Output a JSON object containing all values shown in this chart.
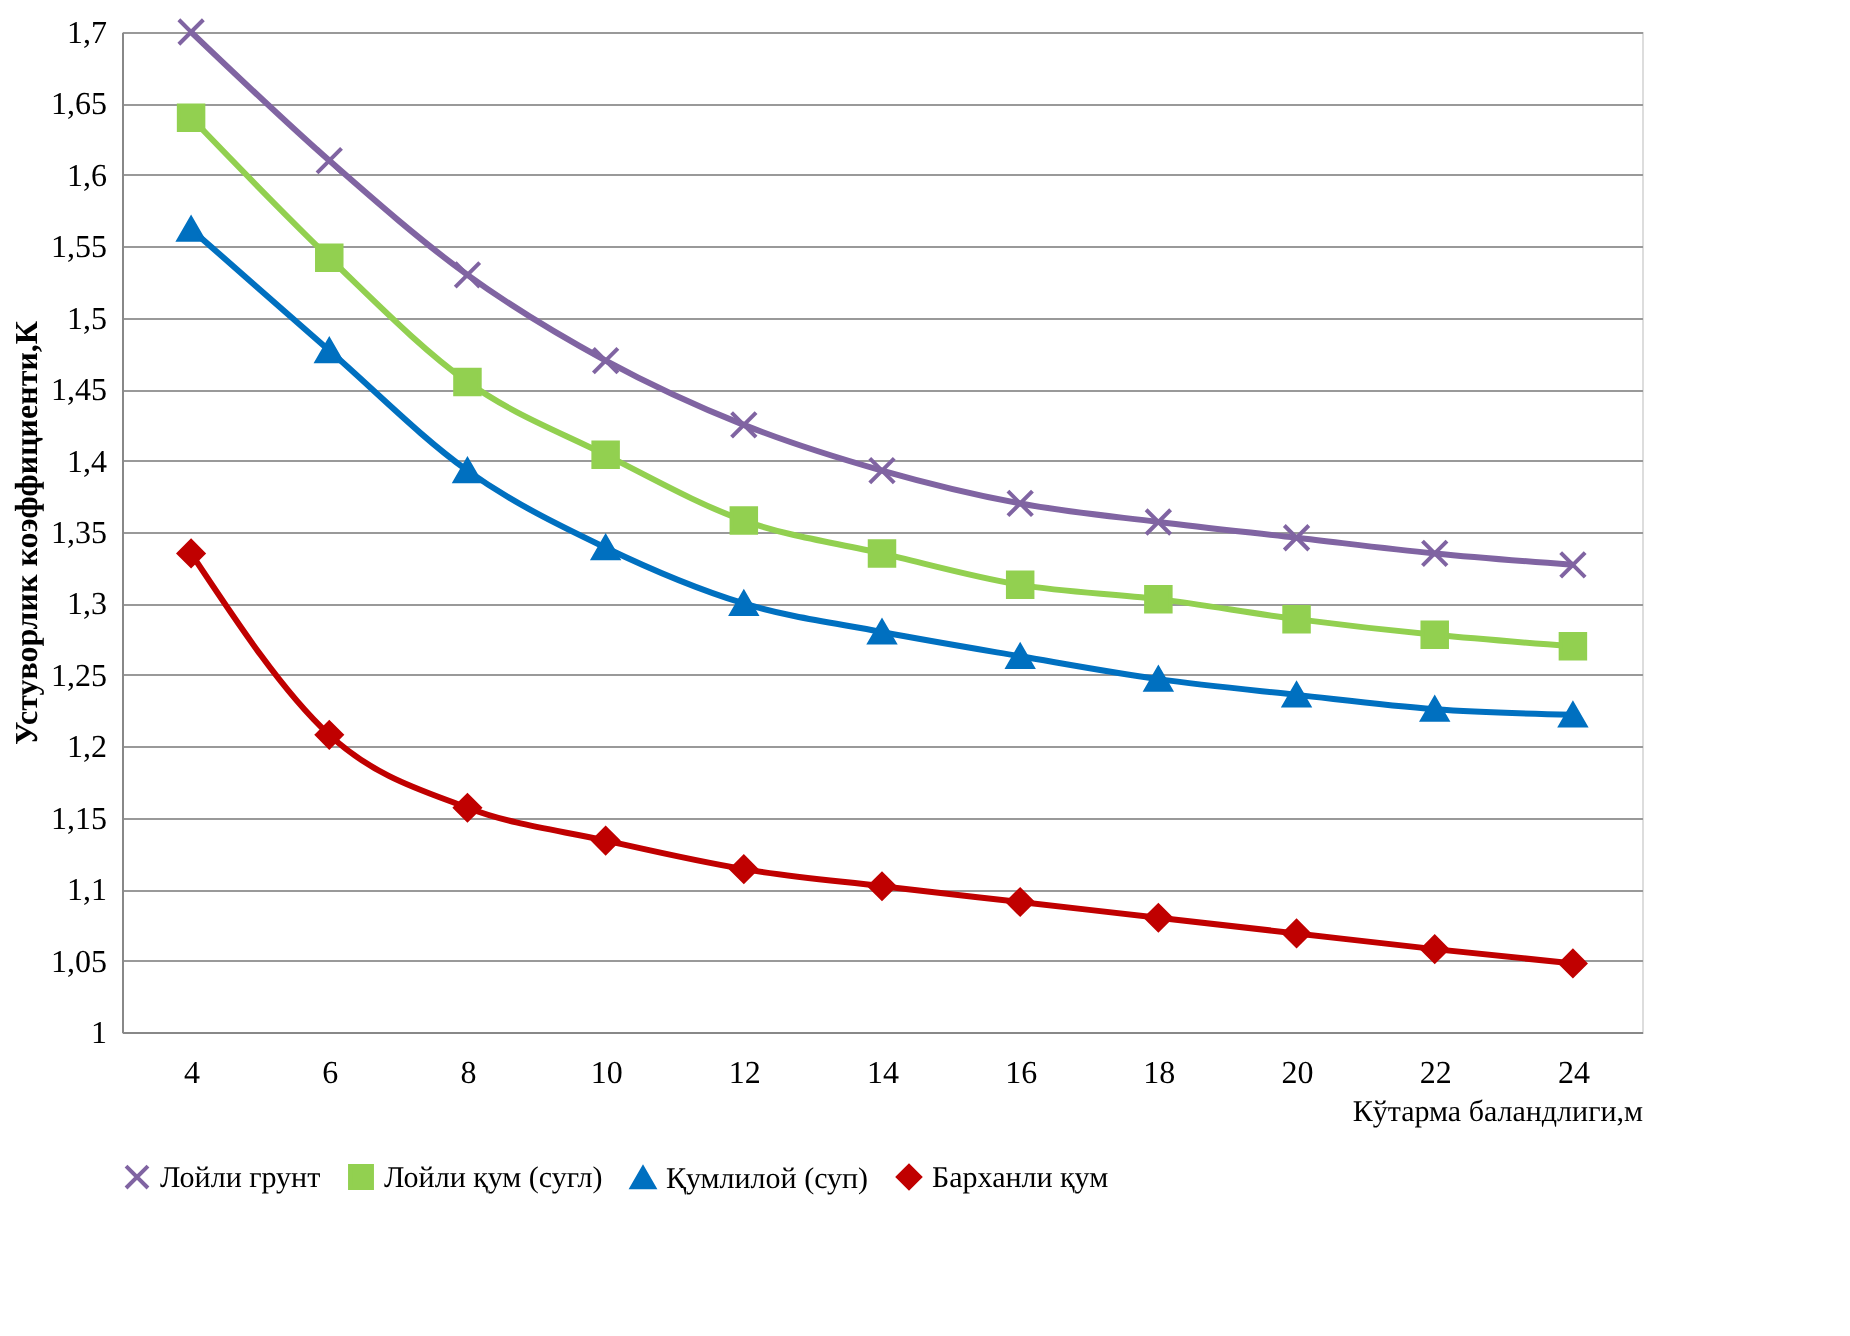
{
  "chart_data": {
    "type": "line",
    "xlabel": "Кўтарма баландлиги,м",
    "ylabel": "Устуворлик коэффициенти,К",
    "categories": [
      "4",
      "6",
      "8",
      "10",
      "12",
      "14",
      "16",
      "18",
      "20",
      "22",
      "24"
    ],
    "series": [
      {
        "name": "Лойли грунт",
        "color": "#8064a2",
        "marker": "cross",
        "values": [
          1.7,
          1.61,
          1.53,
          1.47,
          1.425,
          1.393,
          1.37,
          1.357,
          1.346,
          1.335,
          1.327
        ]
      },
      {
        "name": "Лойли қум (сугл)",
        "color": "#92d050",
        "marker": "square",
        "values": [
          1.64,
          1.542,
          1.455,
          1.404,
          1.358,
          1.335,
          1.313,
          1.303,
          1.289,
          1.278,
          1.27
        ]
      },
      {
        "name": "Қумлилой (суп)",
        "color": "#0070c0",
        "marker": "triangle",
        "values": [
          1.562,
          1.477,
          1.393,
          1.339,
          1.3,
          1.28,
          1.263,
          1.247,
          1.236,
          1.226,
          1.222
        ]
      },
      {
        "name": "Барханли  қум",
        "color": "#c00000",
        "marker": "diamond",
        "values": [
          1.335,
          1.208,
          1.157,
          1.134,
          1.114,
          1.102,
          1.091,
          1.08,
          1.069,
          1.058,
          1.048
        ]
      }
    ],
    "ylim": [
      1,
      1.7
    ],
    "yticks": [
      {
        "value": 1,
        "label": "1"
      },
      {
        "value": 1.05,
        "label": "1,05"
      },
      {
        "value": 1.1,
        "label": "1,1"
      },
      {
        "value": 1.15,
        "label": "1,15"
      },
      {
        "value": 1.2,
        "label": "1,2"
      },
      {
        "value": 1.25,
        "label": "1,25"
      },
      {
        "value": 1.3,
        "label": "1,3"
      },
      {
        "value": 1.35,
        "label": "1,35"
      },
      {
        "value": 1.4,
        "label": "1,4"
      },
      {
        "value": 1.45,
        "label": "1,45"
      },
      {
        "value": 1.5,
        "label": "1,5"
      },
      {
        "value": 1.55,
        "label": "1,55"
      },
      {
        "value": 1.6,
        "label": "1,6"
      },
      {
        "value": 1.65,
        "label": "1,65"
      },
      {
        "value": 1.7,
        "label": "1,7"
      }
    ],
    "grid": "y",
    "legend": "bottom",
    "line_style": "solid"
  }
}
